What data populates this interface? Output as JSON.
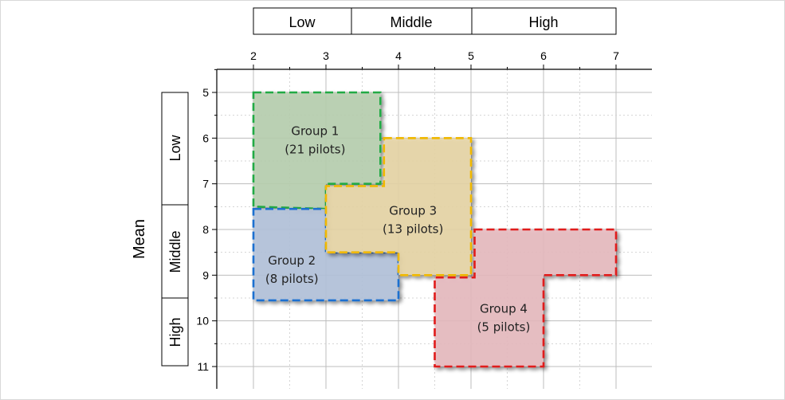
{
  "top_categories": [
    "Low",
    "Middle",
    "High"
  ],
  "left_categories": [
    "Low",
    "Middle",
    "High"
  ],
  "y_axis_title": "Mean",
  "x_ticks": [
    "2",
    "3",
    "4",
    "5",
    "6",
    "7"
  ],
  "y_ticks": [
    "5",
    "6",
    "7",
    "8",
    "9",
    "10",
    "11"
  ],
  "groups": [
    {
      "name": "Group 1",
      "count": "(21 pilots)",
      "color": "#22aa44",
      "fill": "#b9d0b0"
    },
    {
      "name": "Group 2",
      "count": "(8 pilots)",
      "color": "#1a6fd0",
      "fill": "#b4c4dc"
    },
    {
      "name": "Group 3",
      "count": "(13 pilots)",
      "color": "#f0b800",
      "fill": "#e8d6a6"
    },
    {
      "name": "Group 4",
      "count": "(5 pilots)",
      "color": "#e01a1a",
      "fill": "#e8bcc0"
    }
  ],
  "chart_data": {
    "type": "region-map",
    "x_range": [
      2,
      7
    ],
    "y_range": [
      5,
      11
    ],
    "regions": [
      {
        "name": "Group 1",
        "polygon": [
          [
            2,
            5
          ],
          [
            3.75,
            5
          ],
          [
            3.75,
            7
          ],
          [
            3,
            7
          ],
          [
            3,
            7.55
          ],
          [
            2,
            7.5
          ]
        ]
      },
      {
        "name": "Group 2",
        "polygon": [
          [
            2,
            7.55
          ],
          [
            3,
            7.55
          ],
          [
            3,
            8.5
          ],
          [
            4,
            8.5
          ],
          [
            4,
            9.55
          ],
          [
            2,
            9.55
          ]
        ]
      },
      {
        "name": "Group 3",
        "polygon": [
          [
            3.8,
            6
          ],
          [
            5,
            6
          ],
          [
            5,
            9
          ],
          [
            4,
            9
          ],
          [
            4,
            8.5
          ],
          [
            3,
            8.5
          ],
          [
            3,
            7.05
          ],
          [
            3.8,
            7.05
          ]
        ]
      },
      {
        "name": "Group 4",
        "polygon": [
          [
            5.05,
            8
          ],
          [
            7,
            8
          ],
          [
            7,
            9
          ],
          [
            6,
            9
          ],
          [
            6,
            11
          ],
          [
            4.5,
            11
          ],
          [
            4.5,
            9.05
          ],
          [
            5.05,
            9.05
          ]
        ]
      }
    ]
  }
}
